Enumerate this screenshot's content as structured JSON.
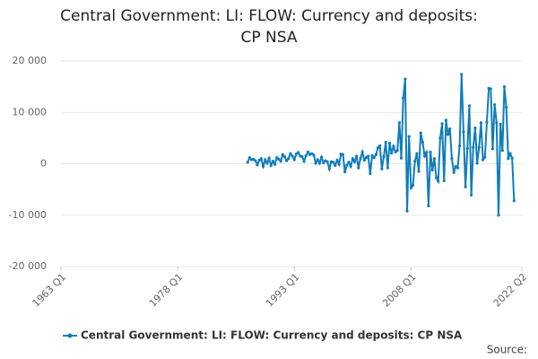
{
  "chart_data": {
    "type": "line",
    "title": "Central Government: LI: FLOW: Currency and deposits: CP NSA",
    "source": "Source:",
    "xlim": [
      "1963 Q1",
      "2022 Q2"
    ],
    "xticks": [
      "1963 Q1",
      "1978 Q1",
      "1993 Q1",
      "2008 Q1",
      "2022 Q2"
    ],
    "ylim": [
      -20000,
      20000
    ],
    "yticks": [
      {
        "value": -20000,
        "label": "-20 000"
      },
      {
        "value": -10000,
        "label": "-10 000"
      },
      0,
      {
        "value": 10000,
        "label": "10 000"
      },
      {
        "value": 20000,
        "label": "20 000"
      }
    ],
    "grid": true,
    "legend": "bottom",
    "start": "1987 Q1",
    "series": [
      {
        "name": "Central Government: LI: FLOW: Currency and deposits: CP NSA",
        "color": "#0f7dbc",
        "values": [
          300,
          1200,
          800,
          900,
          600,
          -200,
          700,
          1000,
          -500,
          800,
          100,
          1100,
          -300,
          500,
          -100,
          1200,
          900,
          500,
          1800,
          1400,
          600,
          1000,
          2000,
          1500,
          800,
          1900,
          2200,
          1500,
          1400,
          500,
          1600,
          2300,
          1800,
          2000,
          1700,
          100,
          800,
          100,
          1300,
          200,
          600,
          400,
          -1000,
          400,
          300,
          -300,
          700,
          -100,
          1900,
          1800,
          -1600,
          -300,
          300,
          -500,
          1000,
          400,
          1500,
          -800,
          1000,
          2300,
          700,
          1200,
          1500,
          -1900,
          1600,
          1200,
          1800,
          3100,
          3500,
          -1000,
          1400,
          4200,
          -800,
          4000,
          2100,
          3400,
          2300,
          2600,
          8000,
          1100,
          12800,
          16500,
          -9200,
          5300,
          -4700,
          -4200,
          500,
          2000,
          -1500,
          6000,
          4200,
          1500,
          2200,
          -8200,
          2300,
          -1200,
          1000,
          -2700,
          -3400,
          5000,
          7800,
          -3300,
          8500,
          5700,
          6800,
          1000,
          -1700,
          -500,
          -800,
          3500,
          17400,
          6200,
          -4500,
          3000,
          11300,
          -6100,
          3200,
          7000,
          100,
          3200,
          8000,
          800,
          1300,
          8100,
          14700,
          14600,
          2900,
          11500,
          8000,
          -10000,
          7700,
          2600,
          15000,
          11000,
          1000,
          2000,
          1100,
          -7200
        ]
      }
    ]
  }
}
